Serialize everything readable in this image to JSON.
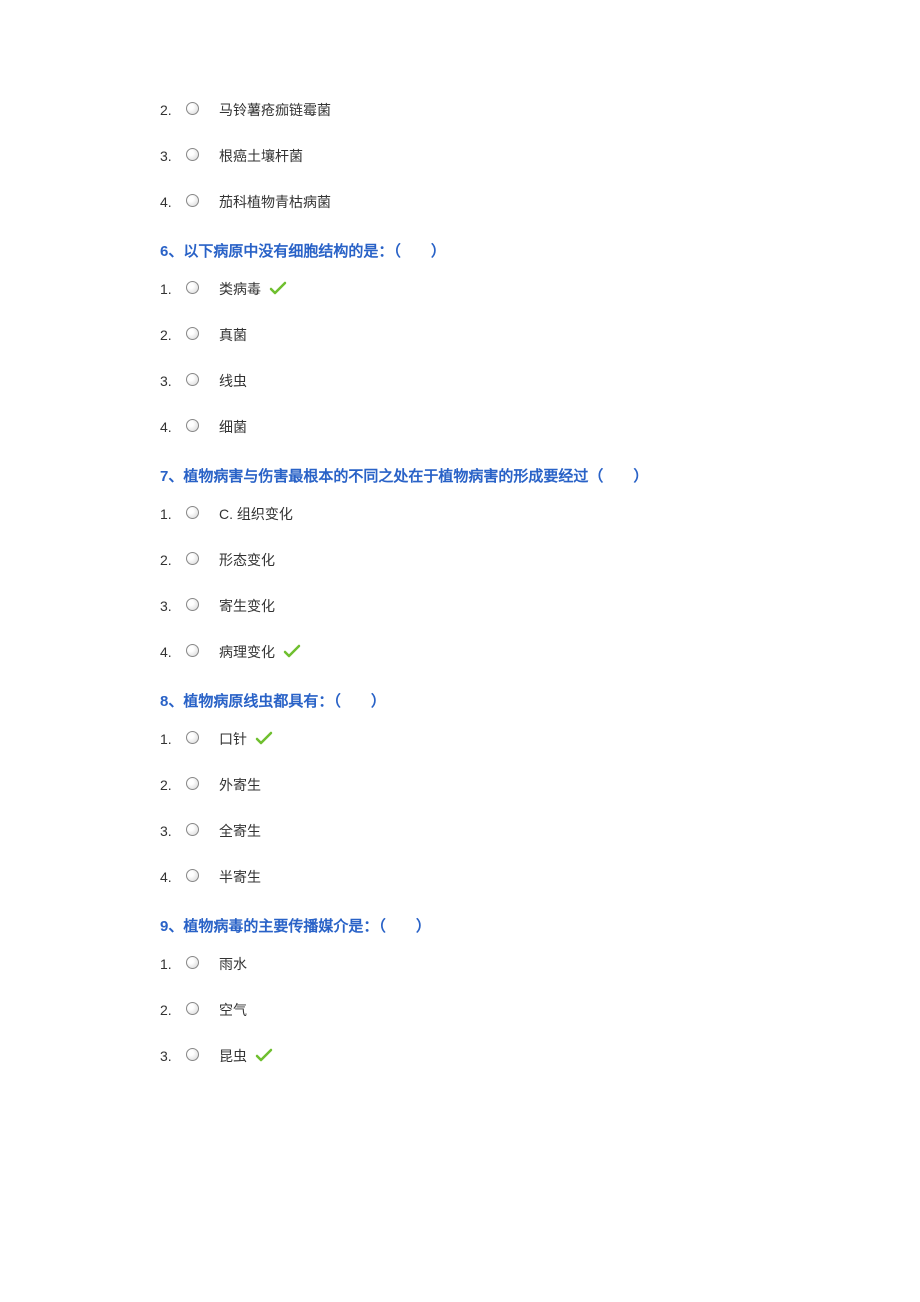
{
  "colors": {
    "question_title": "#2962c7",
    "option_text": "#333333",
    "check_stroke": "#6fbf2f",
    "background": "#ffffff"
  },
  "typography": {
    "title_fontsize": 15,
    "option_fontsize": 14,
    "title_weight": "bold"
  },
  "questions": [
    {
      "title": null,
      "options": [
        {
          "num": "2.",
          "text": "马铃薯疮痂链霉菌",
          "correct": false
        },
        {
          "num": "3.",
          "text": "根癌土壤杆菌",
          "correct": false
        },
        {
          "num": "4.",
          "text": "茄科植物青枯病菌",
          "correct": false
        }
      ]
    },
    {
      "title": "6、以下病原中没有细胞结构的是：（　　）",
      "options": [
        {
          "num": "1.",
          "text": "类病毒",
          "correct": true
        },
        {
          "num": "2.",
          "text": "真菌",
          "correct": false
        },
        {
          "num": "3.",
          "text": "线虫",
          "correct": false
        },
        {
          "num": "4.",
          "text": "细菌",
          "correct": false
        }
      ]
    },
    {
      "title": "7、植物病害与伤害最根本的不同之处在于植物病害的形成要经过（　　）",
      "options": [
        {
          "num": "1.",
          "text": "C. 组织变化",
          "correct": false
        },
        {
          "num": "2.",
          "text": "形态变化",
          "correct": false
        },
        {
          "num": "3.",
          "text": "寄生变化",
          "correct": false
        },
        {
          "num": "4.",
          "text": "病理变化",
          "correct": true
        }
      ]
    },
    {
      "title": "8、植物病原线虫都具有：（　　）",
      "options": [
        {
          "num": "1.",
          "text": "口针",
          "correct": true
        },
        {
          "num": "2.",
          "text": "外寄生",
          "correct": false
        },
        {
          "num": "3.",
          "text": "全寄生",
          "correct": false
        },
        {
          "num": "4.",
          "text": "半寄生",
          "correct": false
        }
      ]
    },
    {
      "title": "9、植物病毒的主要传播媒介是：（　　）",
      "options": [
        {
          "num": "1.",
          "text": "雨水",
          "correct": false
        },
        {
          "num": "2.",
          "text": "空气",
          "correct": false
        },
        {
          "num": "3.",
          "text": "昆虫",
          "correct": true
        }
      ]
    }
  ]
}
